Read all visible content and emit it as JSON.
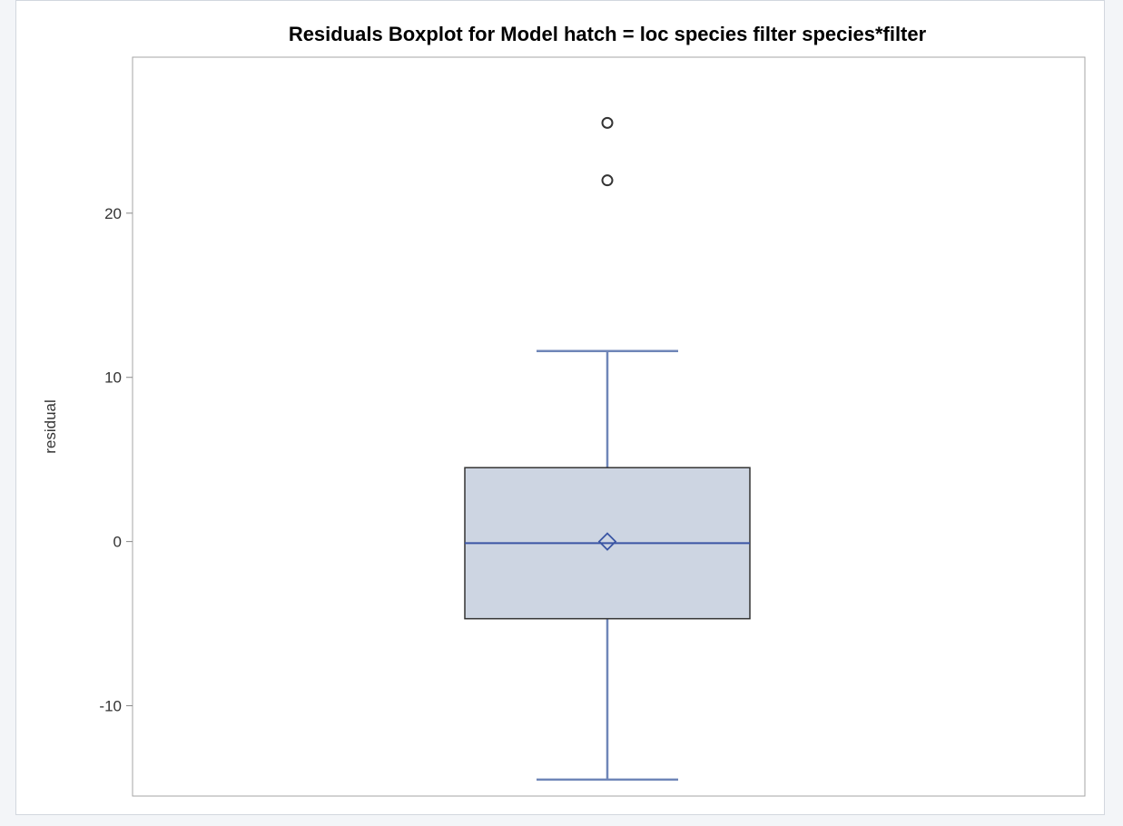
{
  "chart_data": {
    "type": "boxplot",
    "title": "Residuals Boxplot for Model hatch = loc species filter species*filter",
    "xlabel": "",
    "ylabel": "residual",
    "ylim": [
      -15.5,
      29.5
    ],
    "yticks": [
      -10,
      0,
      10,
      20
    ],
    "ytick_labels": [
      "-10",
      "0",
      "10",
      "20"
    ],
    "grid": false,
    "box": {
      "whisker_low": -14.5,
      "q1": -4.7,
      "median": -0.1,
      "mean": 0.0,
      "q3": 4.5,
      "whisker_high": 11.6,
      "outliers": [
        25.5,
        22.0
      ]
    },
    "colors": {
      "box_fill": "#cdd5e2",
      "box_edge": "#333333",
      "median_line": "#3a55a4",
      "whisker": "#6f86b8",
      "mean_marker": "#3a55a4",
      "outlier": "#333333",
      "plot_border": "#a6a6a6"
    }
  }
}
